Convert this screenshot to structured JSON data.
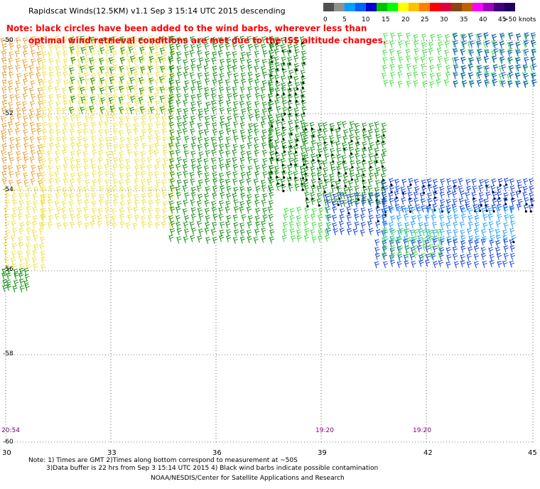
{
  "title": "Rapidscat Winds(12.5KM) v1.1 Sep  3 15:14 UTC 2015 descending",
  "warning": {
    "line1": "Note: black circles have been added to the wind barbs, wherever less than",
    "line2": "optimal wind retrieval conditions are met due to the ISS altitude changes."
  },
  "colorbar": {
    "colors": [
      "#505050",
      "#909090",
      "#00a0ff",
      "#0060ff",
      "#0000cc",
      "#00c000",
      "#00ff00",
      "#ffff00",
      "#ffc000",
      "#ff8000",
      "#ff0000",
      "#e00040",
      "#8b4513",
      "#c06000",
      "#ff00ff",
      "#a000c0",
      "#400080",
      "#200060"
    ],
    "labels": [
      "0",
      "5",
      "10",
      "15",
      "20",
      "25",
      "30",
      "35",
      "40",
      "45",
      ">50 knots"
    ]
  },
  "lat_labels": [
    "-50",
    "-52",
    "-54",
    "-56",
    "-58",
    "-60"
  ],
  "lon_labels": [
    "30",
    "33",
    "36",
    "39",
    "42",
    "45"
  ],
  "time_labels": [
    "20:54",
    "19:20",
    "19:20"
  ],
  "notes": {
    "line1": "Note: 1) Times are GMT 2)Times along bottom correspond to measurement at ~50S",
    "line2": "3)Data buffer is 22 hrs from Sep  3 15:14 UTC 2015 4) Black wind barbs indicate possible contamination",
    "credit": "NOAA/NESDIS/Center for Satellite Applications and Research"
  },
  "wind_colors": {
    "orange": "#e8a030",
    "yellow": "#f0e040",
    "green": "#109010",
    "bright_green": "#40e040",
    "blue": "#1040e0",
    "light_blue": "#20a0ff",
    "contaminated": "#000000"
  }
}
